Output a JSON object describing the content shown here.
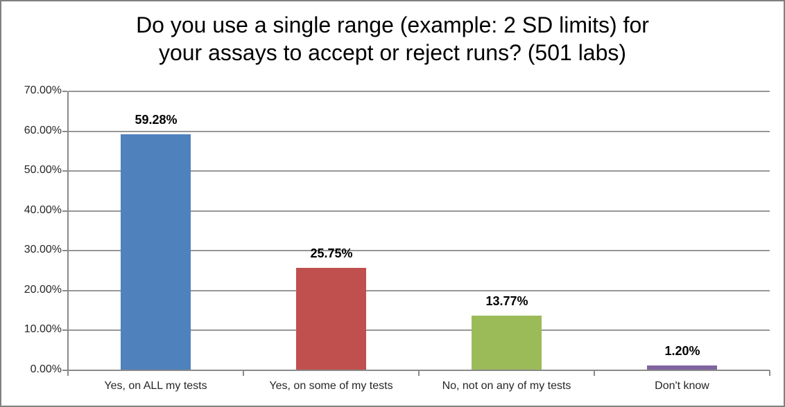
{
  "frame": {
    "border_color": "#808080",
    "background": "#ffffff"
  },
  "header": {
    "title_line1": "Do you use a single range (example: 2 SD limits) for",
    "title_line2": "your assays to accept or reject runs? (501 labs)"
  },
  "chart_data": {
    "type": "bar",
    "title": "Do you use a single range (example: 2 SD limits) for your assays to accept or reject runs? (501 labs)",
    "categories": [
      "Yes, on ALL my tests",
      "Yes, on some of my tests",
      "No, not on any of my tests",
      "Don't know"
    ],
    "values": [
      59.28,
      25.75,
      13.77,
      1.2
    ],
    "value_labels": [
      "59.28%",
      "25.75%",
      "13.77%",
      "1.20%"
    ],
    "bar_colors": [
      "#4F81BD",
      "#C0504D",
      "#9BBB59",
      "#8064A2"
    ],
    "xlabel": "",
    "ylabel": "",
    "ylim": [
      0,
      70
    ],
    "ytick_step": 10,
    "ytick_labels": [
      "0.00%",
      "10.00%",
      "20.00%",
      "30.00%",
      "40.00%",
      "50.00%",
      "60.00%",
      "70.00%"
    ],
    "grid": true,
    "legend_position": "none",
    "gridline_color": "#969696",
    "axis_color": "#898989",
    "tick_label_color": "#262626",
    "value_label_color": "#000000"
  }
}
